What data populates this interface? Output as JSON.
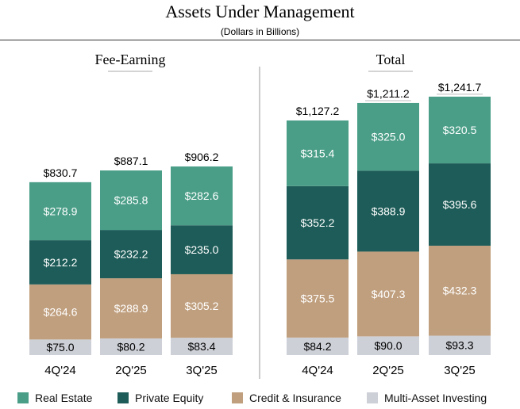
{
  "title": "Assets Under Management",
  "subtitle": "(Dollars in Billions)",
  "colors": {
    "real_estate": "#4a9e87",
    "private_equity": "#1d5c58",
    "credit_insurance": "#c09f7e",
    "multi_asset": "#cdd0d7"
  },
  "legend": [
    {
      "label": "Real Estate",
      "color": "#4a9e87"
    },
    {
      "label": "Private Equity",
      "color": "#1d5c58"
    },
    {
      "label": "Credit & Insurance",
      "color": "#c09f7e"
    },
    {
      "label": "Multi-Asset Investing",
      "color": "#cdd0d7"
    }
  ],
  "chart_data": [
    {
      "type": "bar",
      "stacked": true,
      "title": "Fee-Earning",
      "categories": [
        "4Q'24",
        "2Q'25",
        "3Q'25"
      ],
      "total_labels": [
        "$830.7",
        "$887.1",
        "$906.2"
      ],
      "series": [
        {
          "name": "Multi-Asset Investing",
          "values": [
            75.0,
            80.2,
            83.4
          ],
          "labels": [
            "$75.0",
            "$80.2",
            "$83.4"
          ]
        },
        {
          "name": "Credit & Insurance",
          "values": [
            264.6,
            288.9,
            305.2
          ],
          "labels": [
            "$264.6",
            "$288.9",
            "$305.2"
          ]
        },
        {
          "name": "Private Equity",
          "values": [
            212.2,
            232.2,
            235.0
          ],
          "labels": [
            "$212.2",
            "$232.2",
            "$235.0"
          ]
        },
        {
          "name": "Real Estate",
          "values": [
            278.9,
            285.8,
            282.6
          ],
          "labels": [
            "$278.9",
            "$285.8",
            "$282.6"
          ]
        }
      ]
    },
    {
      "type": "bar",
      "stacked": true,
      "title": "Total",
      "categories": [
        "4Q'24",
        "2Q'25",
        "3Q'25"
      ],
      "total_labels": [
        "$1,127.2",
        "$1,211.2",
        "$1,241.7"
      ],
      "series": [
        {
          "name": "Multi-Asset Investing",
          "values": [
            84.2,
            90.0,
            93.3
          ],
          "labels": [
            "$84.2",
            "$90.0",
            "$93.3"
          ]
        },
        {
          "name": "Credit & Insurance",
          "values": [
            375.5,
            407.3,
            432.3
          ],
          "labels": [
            "$375.5",
            "$407.3",
            "$432.3"
          ]
        },
        {
          "name": "Private Equity",
          "values": [
            352.2,
            388.9,
            395.6
          ],
          "labels": [
            "$352.2",
            "$388.9",
            "$395.6"
          ]
        },
        {
          "name": "Real Estate",
          "values": [
            315.4,
            325.0,
            320.5
          ],
          "labels": [
            "$315.4",
            "$325.0",
            "$320.5"
          ]
        }
      ]
    }
  ]
}
